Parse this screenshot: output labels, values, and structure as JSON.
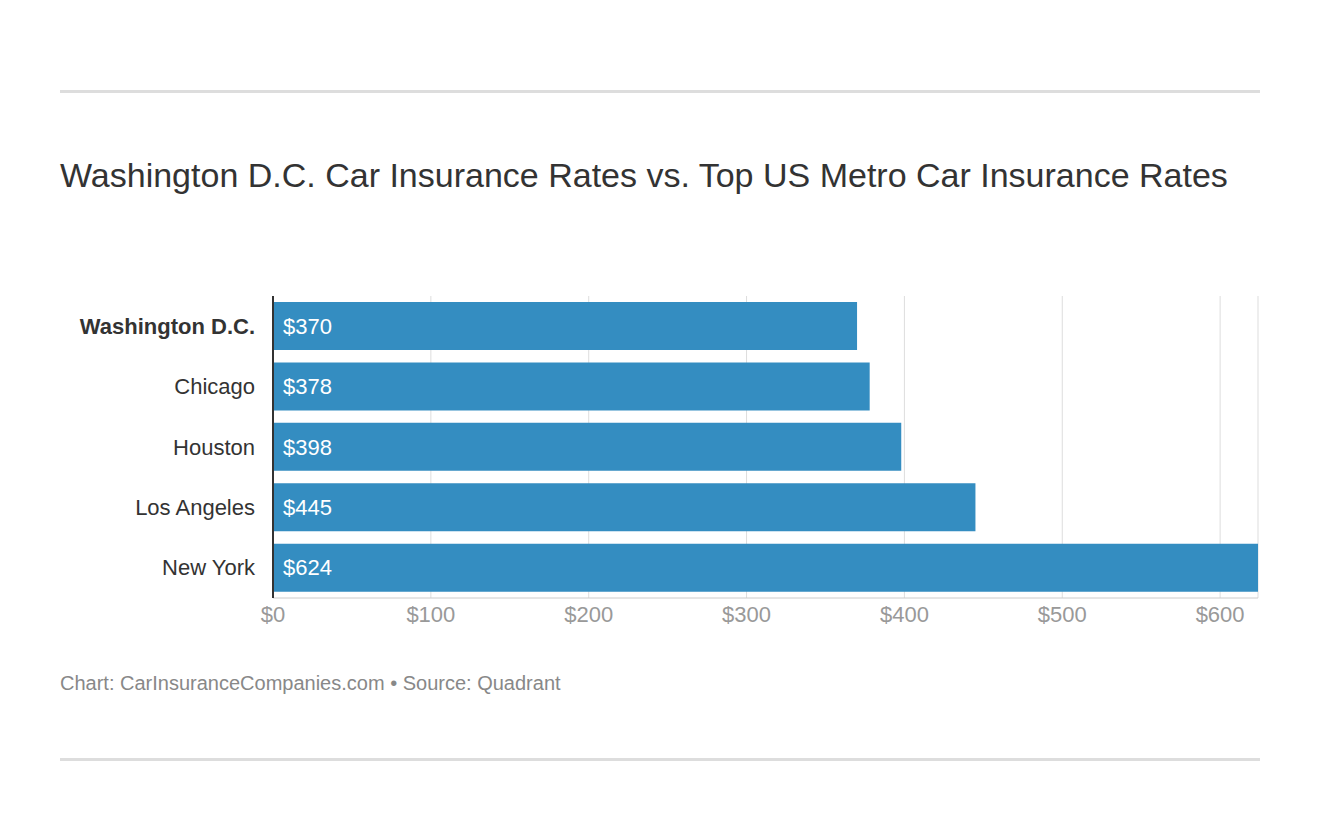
{
  "chart_data": {
    "type": "bar",
    "title": "Washington D.C. Car Insurance Rates vs. Top US Metro Car Insurance Rates",
    "source": "Chart: CarInsuranceCompanies.com • Source: Quadrant",
    "orientation": "horizontal",
    "categories": [
      "Washington D.C.",
      "Chicago",
      "Houston",
      "Los Angeles",
      "New York"
    ],
    "values": [
      370,
      378,
      398,
      445,
      624
    ],
    "value_labels": [
      "$370",
      "$378",
      "$398",
      "$445",
      "$624"
    ],
    "data_labels": true,
    "color": "#348dc1",
    "xlim": [
      0,
      624
    ],
    "xticks": [
      {
        "value": 0,
        "label": "$0"
      },
      {
        "value": 100,
        "label": "$100"
      },
      {
        "value": 200,
        "label": "$200"
      },
      {
        "value": 300,
        "label": "$300"
      },
      {
        "value": 400,
        "label": "$400"
      },
      {
        "value": 500,
        "label": "$500"
      },
      {
        "value": 600,
        "label": "$600"
      }
    ],
    "grid": true
  }
}
